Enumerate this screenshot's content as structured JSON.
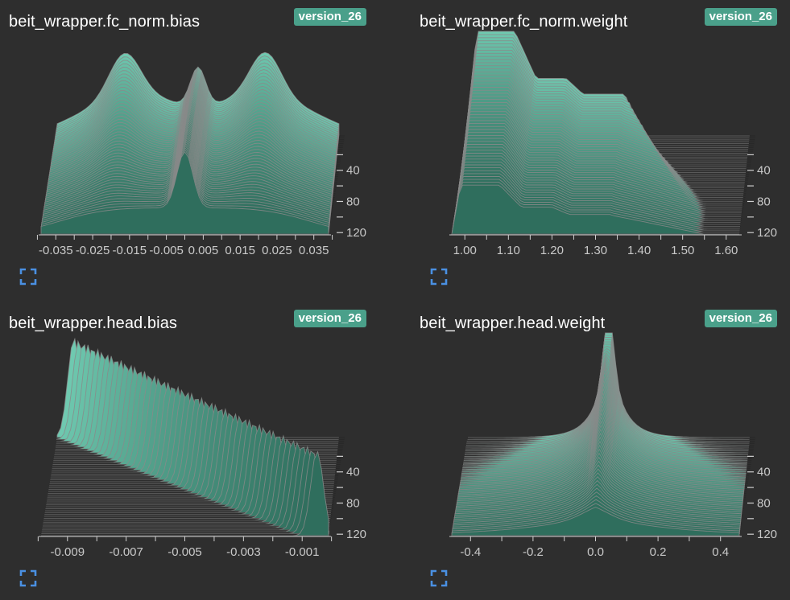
{
  "colors": {
    "background": "#2e2e2e",
    "badge": "#4aa08a",
    "fill_back": "#6fc9b0",
    "fill_front": "#2f6e5d",
    "stroke": "#8a8a8a",
    "axis": "#d0d0d0",
    "expand_icon": "#4a90e2"
  },
  "charts": [
    {
      "title": "beit_wrapper.fc_norm.bias",
      "badge": "version_26",
      "expand_icon": "fullscreen-icon",
      "chart_data": {
        "type": "histogram-ridgeline",
        "shape": "bimodal-with-center-spike",
        "xlim": [
          -0.039,
          0.039
        ],
        "x_ticks": [
          -0.035,
          -0.025,
          -0.015,
          -0.005,
          0.005,
          0.015,
          0.025,
          0.035
        ],
        "x_tick_labels": [
          "-0.035",
          "-0.025",
          "-0.015",
          "-0.005",
          "0.005",
          "0.015",
          "0.025",
          "0.035"
        ],
        "y_ticks": [
          20,
          40,
          60,
          80,
          100,
          120
        ],
        "y_tick_labels": [
          "",
          "40",
          "",
          "80",
          "",
          "120"
        ],
        "steps": [
          0,
          126
        ]
      }
    },
    {
      "title": "beit_wrapper.fc_norm.weight",
      "badge": "version_26",
      "expand_icon": "fullscreen-icon",
      "chart_data": {
        "type": "histogram-ridgeline",
        "shape": "stepped-right-skew",
        "xlim": [
          0.97,
          1.63
        ],
        "x_ticks": [
          1.0,
          1.1,
          1.2,
          1.3,
          1.4,
          1.5,
          1.6
        ],
        "x_tick_labels": [
          "1.00",
          "1.10",
          "1.20",
          "1.30",
          "1.40",
          "1.50",
          "1.60"
        ],
        "y_ticks": [
          20,
          40,
          60,
          80,
          100,
          120
        ],
        "y_tick_labels": [
          "",
          "40",
          "",
          "80",
          "",
          "120"
        ],
        "steps": [
          0,
          126
        ]
      }
    },
    {
      "title": "beit_wrapper.head.bias",
      "badge": "version_26",
      "expand_icon": "fullscreen-icon",
      "chart_data": {
        "type": "histogram-ridgeline",
        "shape": "drifting-spikes",
        "xlim": [
          -0.0099,
          -0.0001
        ],
        "x_ticks": [
          -0.009,
          -0.007,
          -0.005,
          -0.003,
          -0.001
        ],
        "x_tick_labels": [
          "-0.009",
          "-0.007",
          "-0.005",
          "-0.003",
          "-0.001"
        ],
        "y_ticks": [
          20,
          40,
          60,
          80,
          100,
          120
        ],
        "y_tick_labels": [
          "",
          "40",
          "",
          "80",
          "",
          "120"
        ],
        "steps": [
          0,
          126
        ]
      }
    },
    {
      "title": "beit_wrapper.head.weight",
      "badge": "version_26",
      "expand_icon": "fullscreen-icon",
      "chart_data": {
        "type": "histogram-ridgeline",
        "shape": "laplace-widening",
        "xlim": [
          -0.46,
          0.46
        ],
        "x_ticks": [
          -0.4,
          -0.2,
          0.0,
          0.2,
          0.4
        ],
        "x_tick_labels": [
          "-0.4",
          "-0.2",
          "0.0",
          "0.2",
          "0.4"
        ],
        "y_ticks": [
          20,
          40,
          60,
          80,
          100,
          120
        ],
        "y_tick_labels": [
          "",
          "40",
          "",
          "80",
          "",
          "120"
        ],
        "steps": [
          0,
          126
        ]
      }
    }
  ]
}
